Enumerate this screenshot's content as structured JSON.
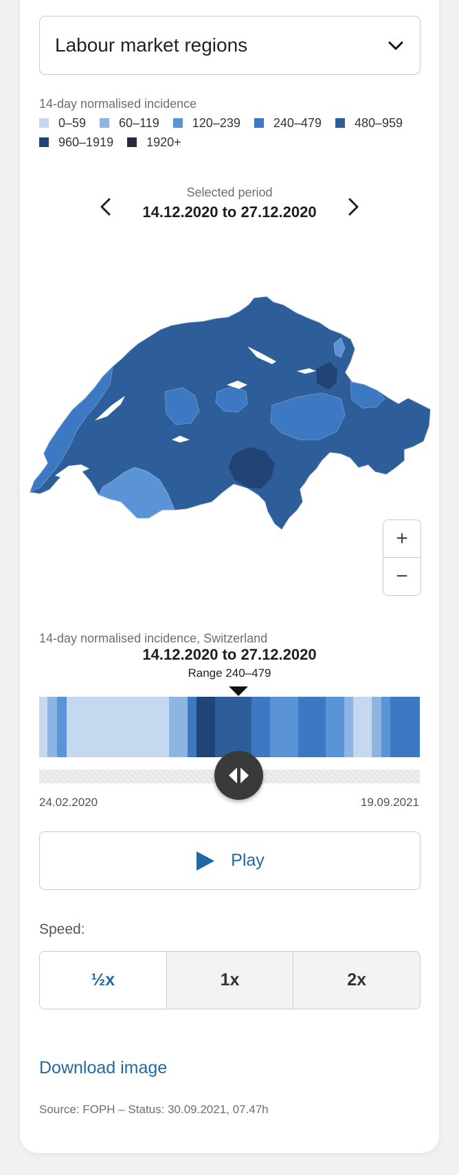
{
  "dropdown": {
    "value": "Labour market regions",
    "icon": "chevron-down-icon"
  },
  "legend": {
    "title": "14-day normalised incidence",
    "items": [
      {
        "label": "0–59",
        "color": "#c6d8ef"
      },
      {
        "label": "60–119",
        "color": "#8cb5e2"
      },
      {
        "label": "120–239",
        "color": "#5a93d6"
      },
      {
        "label": "240–479",
        "color": "#3d79c2"
      },
      {
        "label": "480–959",
        "color": "#2e5e99"
      },
      {
        "label": "960–1919",
        "color": "#1f4475"
      },
      {
        "label": "1920+",
        "color": "#252d3a"
      }
    ]
  },
  "period": {
    "label": "Selected period",
    "value": "14.12.2020 to 27.12.2020"
  },
  "zoom": {
    "in": "+",
    "out": "−"
  },
  "timeline": {
    "title": "14-day normalised incidence, Switzerland",
    "period": "14.12.2020 to 27.12.2020",
    "range": "Range 240–479",
    "start": "24.02.2020",
    "end": "19.09.2021",
    "segments": [
      {
        "w": 12,
        "c": "#c6d8ef"
      },
      {
        "w": 14,
        "c": "#8cb5e2"
      },
      {
        "w": 14,
        "c": "#5a93d6"
      },
      {
        "w": 149,
        "c": "#c6d8ef"
      },
      {
        "w": 27,
        "c": "#8cb5e2"
      },
      {
        "w": 13,
        "c": "#3d79c2"
      },
      {
        "w": 27,
        "c": "#1f4475"
      },
      {
        "w": 53,
        "c": "#2e5e99"
      },
      {
        "w": 27,
        "c": "#3d79c2"
      },
      {
        "w": 41,
        "c": "#5a93d6"
      },
      {
        "w": 40,
        "c": "#3d79c2"
      },
      {
        "w": 27,
        "c": "#5a93d6"
      },
      {
        "w": 13,
        "c": "#8cb5e2"
      },
      {
        "w": 27,
        "c": "#c6d8ef"
      },
      {
        "w": 14,
        "c": "#8cb5e2"
      },
      {
        "w": 13,
        "c": "#5a93d6"
      },
      {
        "w": 43,
        "c": "#3d79c2"
      }
    ]
  },
  "play": {
    "label": "Play"
  },
  "speed": {
    "label": "Speed:",
    "options": [
      "½x",
      "1x",
      "2x"
    ],
    "selected": "½x"
  },
  "download": {
    "label": "Download image"
  },
  "source": {
    "text": "Source: FOPH – Status: 30.09.2021, 07.47h"
  }
}
